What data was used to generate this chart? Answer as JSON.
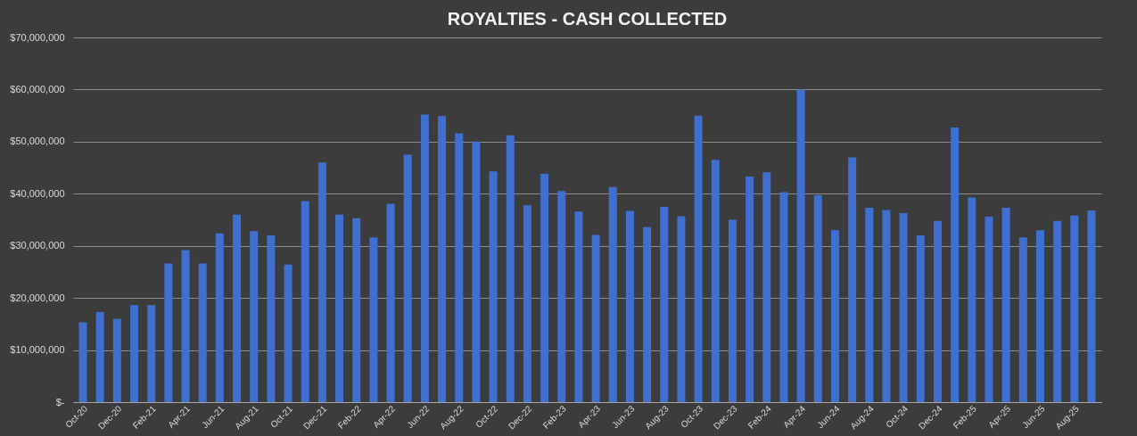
{
  "chart_data": {
    "type": "bar",
    "title": "ROYALTIES  -  CASH COLLECTED",
    "categories": [
      "Oct-20",
      null,
      "Dec-20",
      null,
      "Feb-21",
      null,
      "Apr-21",
      null,
      "Jun-21",
      null,
      "Aug-21",
      null,
      "Oct-21",
      null,
      "Dec-21",
      null,
      "Feb-22",
      null,
      "Apr-22",
      null,
      "Jun-22",
      null,
      "Aug-22",
      null,
      "Oct-22",
      null,
      "Dec-22",
      null,
      "Feb-23",
      null,
      "Apr-23",
      null,
      "Jun-23",
      null,
      "Aug-23",
      null,
      "Oct-23",
      null,
      "Dec-23",
      null,
      "Feb-24",
      null,
      "Apr-24",
      null,
      "Jun-24",
      null,
      "Aug-24",
      null,
      "Oct-24",
      null,
      "Dec-24",
      null,
      "Feb-25",
      null,
      "Apr-25",
      null,
      "Jun-25",
      null,
      "Aug-25",
      null
    ],
    "series": [
      {
        "color": "#3f6fd0",
        "values": [
          15300000,
          17300000,
          16000000,
          18600000,
          18600000,
          26600000,
          29200000,
          26600000,
          32400000,
          36000000,
          32800000,
          32000000,
          26400000,
          38600000,
          46000000,
          36000000,
          35300000,
          31600000,
          38100000,
          47500000,
          55200000,
          54900000,
          51600000,
          50000000,
          44300000,
          51200000,
          37800000,
          43800000,
          40500000,
          36600000,
          32100000,
          41300000,
          36700000,
          33600000,
          37500000,
          35700000,
          55000000,
          46500000,
          35000000,
          43300000,
          44100000,
          40300000,
          60000000,
          39700000,
          33000000,
          47000000,
          37300000,
          36900000,
          36300000,
          32000000,
          34800000,
          52700000,
          39300000,
          35600000,
          37300000,
          31600000,
          33000000,
          34800000,
          35800000,
          36800000
        ]
      }
    ],
    "ylim": [
      0,
      70000000
    ],
    "yticks": [
      {
        "value": 0,
        "label": "$-"
      },
      {
        "value": 10000000,
        "label": "$10,000,000"
      },
      {
        "value": 20000000,
        "label": "$20,000,000"
      },
      {
        "value": 30000000,
        "label": "$30,000,000"
      },
      {
        "value": 40000000,
        "label": "$40,000,000"
      },
      {
        "value": 50000000,
        "label": "$50,000,000"
      },
      {
        "value": 60000000,
        "label": "$60,000,000"
      },
      {
        "value": 70000000,
        "label": "$70,000,000"
      }
    ],
    "grid": "y"
  }
}
